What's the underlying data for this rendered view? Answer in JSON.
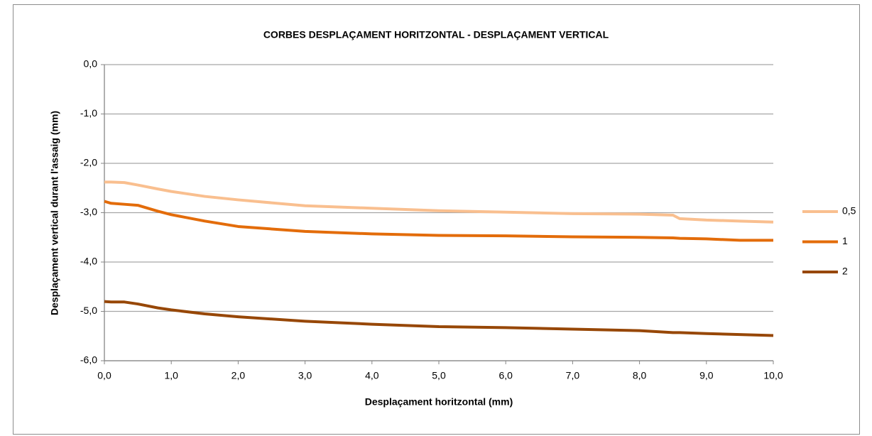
{
  "chart_data": {
    "type": "line",
    "title": "CORBES  DESPLAÇAMENT  HORITZONTAL - DESPLAÇAMENT  VERTICAL",
    "x_label": "Desplaçament horitzontal (mm)",
    "y_label": "Desplaçament vertical durant l'assaig (mm)",
    "x": [
      0,
      0.1,
      0.3,
      0.5,
      0.8,
      1,
      1.5,
      2,
      3,
      4,
      5,
      6,
      7,
      8,
      8.5,
      8.6,
      9,
      9.5,
      10
    ],
    "series": [
      {
        "name": "0,5",
        "color": "#f9bf8f",
        "values": [
          -2.38,
          -2.38,
          -2.39,
          -2.44,
          -2.52,
          -2.57,
          -2.67,
          -2.74,
          -2.86,
          -2.91,
          -2.96,
          -2.99,
          -3.02,
          -3.03,
          -3.05,
          -3.12,
          -3.15,
          -3.17,
          -3.19
        ]
      },
      {
        "name": "1",
        "color": "#e36c0a",
        "values": [
          -2.77,
          -2.81,
          -2.83,
          -2.85,
          -2.97,
          -3.04,
          -3.17,
          -3.28,
          -3.38,
          -3.43,
          -3.46,
          -3.47,
          -3.49,
          -3.5,
          -3.51,
          -3.52,
          -3.53,
          -3.56,
          -3.56
        ]
      },
      {
        "name": "2",
        "color": "#974706",
        "values": [
          -4.8,
          -4.81,
          -4.81,
          -4.85,
          -4.93,
          -4.97,
          -5.05,
          -5.11,
          -5.2,
          -5.26,
          -5.31,
          -5.33,
          -5.36,
          -5.39,
          -5.43,
          -5.43,
          -5.45,
          -5.47,
          -5.49
        ]
      }
    ],
    "xlim": [
      0,
      10
    ],
    "xticks": [
      {
        "value": 0,
        "label": "0,0"
      },
      {
        "value": 1,
        "label": "1,0"
      },
      {
        "value": 2,
        "label": "2,0"
      },
      {
        "value": 3,
        "label": "3,0"
      },
      {
        "value": 4,
        "label": "4,0"
      },
      {
        "value": 5,
        "label": "5,0"
      },
      {
        "value": 6,
        "label": "6,0"
      },
      {
        "value": 7,
        "label": "7,0"
      },
      {
        "value": 8,
        "label": "8,0"
      },
      {
        "value": 9,
        "label": "9,0"
      },
      {
        "value": 10,
        "label": "10,0"
      }
    ],
    "ylim": [
      -6,
      0
    ],
    "yticks": [
      {
        "value": 0,
        "label": "0,0"
      },
      {
        "value": -1,
        "label": "-1,0"
      },
      {
        "value": -2,
        "label": "-2,0"
      },
      {
        "value": -3,
        "label": "-3,0"
      },
      {
        "value": -4,
        "label": "-4,0"
      },
      {
        "value": -5,
        "label": "-5,0"
      },
      {
        "value": -6,
        "label": "-6,0"
      }
    ],
    "grid": true,
    "legend": "right"
  }
}
